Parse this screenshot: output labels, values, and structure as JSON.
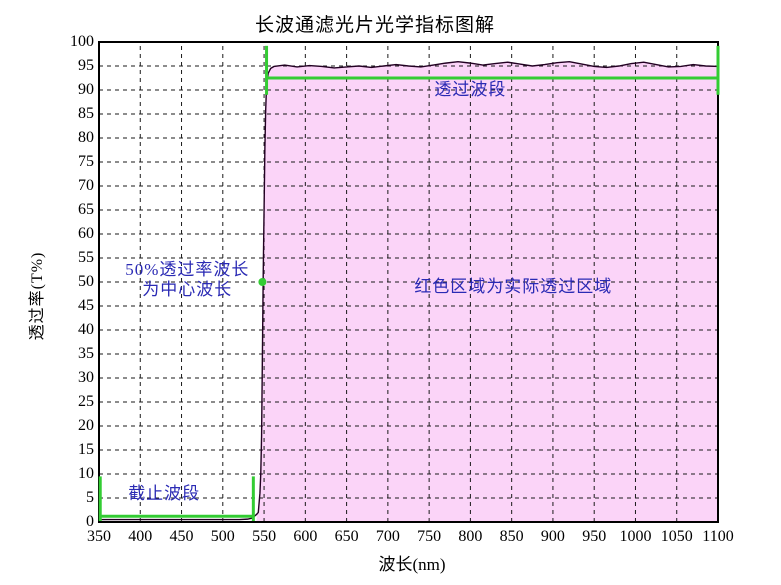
{
  "title": "长波通滤光片光学指标图解",
  "axes": {
    "x_label": "波长(nm)",
    "y_label": "透过率(T%)",
    "x_ticks": [
      350,
      400,
      450,
      500,
      550,
      600,
      650,
      700,
      750,
      800,
      850,
      900,
      950,
      1000,
      1050,
      1100
    ],
    "y_ticks": [
      0,
      5,
      10,
      15,
      20,
      25,
      30,
      35,
      40,
      45,
      50,
      55,
      60,
      65,
      70,
      75,
      80,
      85,
      90,
      95,
      100
    ]
  },
  "chart_data": {
    "type": "area",
    "title": "长波通滤光片光学指标图解",
    "xlabel": "波长(nm)",
    "ylabel": "透过率(T%)",
    "xlim": [
      350,
      1100
    ],
    "ylim": [
      0,
      100
    ],
    "x_tick_step": 50,
    "y_tick_step": 5,
    "grid": "dashed",
    "series": [
      {
        "name": "transmittance-curve",
        "x": [
          350,
          400,
          450,
          500,
          520,
          530,
          535,
          537,
          539,
          541,
          543,
          545,
          546,
          547,
          548,
          549,
          550,
          551,
          552,
          553,
          555,
          558,
          562,
          575,
          590,
          605,
          620,
          635,
          650,
          665,
          680,
          695,
          710,
          725,
          740,
          755,
          770,
          785,
          800,
          815,
          830,
          845,
          860,
          875,
          890,
          905,
          920,
          935,
          950,
          965,
          980,
          995,
          1010,
          1025,
          1040,
          1055,
          1070,
          1085,
          1100
        ],
        "y": [
          0.5,
          0.5,
          0.5,
          0.5,
          0.5,
          0.6,
          0.8,
          1.0,
          1.3,
          1.6,
          2,
          6,
          10,
          18,
          35,
          52,
          65,
          78,
          86,
          91,
          93.5,
          94.5,
          94.9,
          95.2,
          94.8,
          95.1,
          94.9,
          94.6,
          94.8,
          95.0,
          94.7,
          95.0,
          95.3,
          95.0,
          94.8,
          95.2,
          95.6,
          95.9,
          95.6,
          95.2,
          95.5,
          95.8,
          95.4,
          95.0,
          95.3,
          95.7,
          95.9,
          95.4,
          94.9,
          94.7,
          95.0,
          95.5,
          95.8,
          95.3,
          94.8,
          94.9,
          95.3,
          95.0,
          94.9
        ]
      }
    ],
    "fill_region": {
      "from_x": 541,
      "note": "pink area = actual pass region under curve"
    },
    "marker": {
      "x": 548,
      "y": 50
    },
    "brackets": [
      {
        "name": "transmission-band-bracket",
        "x1": 553,
        "x2": 1100,
        "line_y": 92.5,
        "tick_top": 99.2,
        "tick_bottom": 89
      },
      {
        "name": "cutoff-band-bracket",
        "x1": 351.5,
        "x2": 537,
        "line_y": 1.2,
        "tick_top": 9.5,
        "tick_bottom": 0.2
      }
    ],
    "annotations": [
      {
        "name": "transmission-band-label",
        "text": "透过波段",
        "x": 800,
        "y": 90
      },
      {
        "name": "pass-region-label",
        "text": "红色区域为实际透过区域",
        "x": 852,
        "y": 49
      },
      {
        "name": "center-wavelength-label",
        "text": "50%透过率波长\n为中心波长",
        "x": 457,
        "y": 50.5
      },
      {
        "name": "cutoff-band-label",
        "text": "截止波段",
        "x": 429,
        "y": 5.8
      }
    ]
  },
  "colors": {
    "annotation_text": "#2a2ab4",
    "bracket_green": "#33cc33",
    "fill_pink": "#fbd4f8",
    "curve": "#220022",
    "grid": "#1a1a1a",
    "frame": "#000000",
    "background": "#ffffff"
  }
}
